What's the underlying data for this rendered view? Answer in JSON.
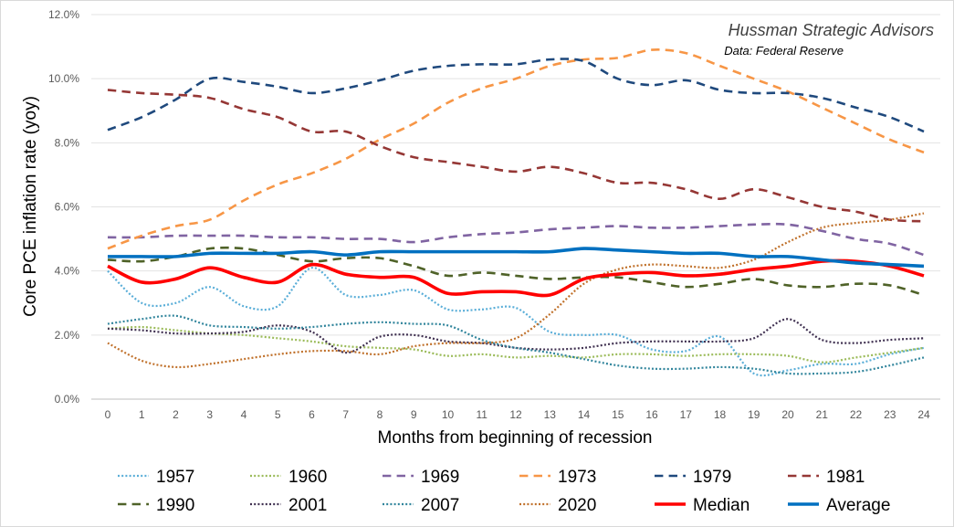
{
  "credit": {
    "line1": "Hussman Strategic Advisors",
    "line2": "Data: Federal Reserve"
  },
  "chart_data": {
    "type": "line",
    "xlabel": "Months from beginning of recession",
    "ylabel": "Core PCE inflation rate (yoy)",
    "x": [
      0,
      1,
      2,
      3,
      4,
      5,
      6,
      7,
      8,
      9,
      10,
      11,
      12,
      13,
      14,
      15,
      16,
      17,
      18,
      19,
      20,
      21,
      22,
      23,
      24
    ],
    "ylim": [
      0,
      12
    ],
    "y_ticks": [
      "0.0%",
      "2.0%",
      "4.0%",
      "6.0%",
      "8.0%",
      "10.0%",
      "12.0%"
    ],
    "y_tick_values": [
      0,
      2,
      4,
      6,
      8,
      10,
      12
    ],
    "grid": "horizontal",
    "legend_position": "bottom",
    "series": [
      {
        "name": "1957",
        "color": "#5aaed8",
        "style": "dotted",
        "width": 2.2,
        "values": [
          4.0,
          3.0,
          3.0,
          3.5,
          2.9,
          2.9,
          4.1,
          3.25,
          3.25,
          3.4,
          2.8,
          2.8,
          2.85,
          2.1,
          2.0,
          2.0,
          1.55,
          1.5,
          1.95,
          0.8,
          0.9,
          1.1,
          1.1,
          1.4,
          1.6
        ]
      },
      {
        "name": "1960",
        "color": "#9bbb59",
        "style": "dotted",
        "width": 2.2,
        "values": [
          2.2,
          2.25,
          2.15,
          2.05,
          2.0,
          1.9,
          1.8,
          1.65,
          1.6,
          1.55,
          1.35,
          1.4,
          1.3,
          1.35,
          1.3,
          1.4,
          1.4,
          1.35,
          1.4,
          1.4,
          1.35,
          1.15,
          1.3,
          1.45,
          1.6
        ]
      },
      {
        "name": "1969",
        "color": "#8064a2",
        "style": "dashed",
        "width": 2.6,
        "values": [
          5.05,
          5.05,
          5.1,
          5.1,
          5.1,
          5.05,
          5.05,
          5.0,
          5.0,
          4.9,
          5.05,
          5.15,
          5.2,
          5.3,
          5.35,
          5.4,
          5.35,
          5.35,
          5.4,
          5.45,
          5.45,
          5.25,
          5.0,
          4.85,
          4.5
        ]
      },
      {
        "name": "1973",
        "color": "#f79646",
        "style": "dashed",
        "width": 2.6,
        "values": [
          4.7,
          5.1,
          5.4,
          5.6,
          6.2,
          6.7,
          7.05,
          7.5,
          8.1,
          8.6,
          9.25,
          9.7,
          10.0,
          10.4,
          10.6,
          10.65,
          10.9,
          10.8,
          10.4,
          10.0,
          9.6,
          9.1,
          8.6,
          8.1,
          7.7
        ]
      },
      {
        "name": "1979",
        "color": "#1f497d",
        "style": "dashed",
        "width": 2.6,
        "values": [
          8.4,
          8.8,
          9.35,
          10.0,
          9.9,
          9.75,
          9.55,
          9.7,
          9.95,
          10.25,
          10.4,
          10.45,
          10.45,
          10.6,
          10.55,
          10.0,
          9.8,
          9.95,
          9.65,
          9.55,
          9.55,
          9.4,
          9.1,
          8.8,
          8.35
        ]
      },
      {
        "name": "1981",
        "color": "#953735",
        "style": "dashed",
        "width": 2.6,
        "values": [
          9.65,
          9.55,
          9.5,
          9.4,
          9.05,
          8.8,
          8.35,
          8.35,
          7.9,
          7.55,
          7.4,
          7.25,
          7.1,
          7.25,
          7.05,
          6.75,
          6.75,
          6.55,
          6.25,
          6.55,
          6.3,
          6.0,
          5.85,
          5.6,
          5.55
        ]
      },
      {
        "name": "1990",
        "color": "#4f6228",
        "style": "dashed",
        "width": 2.6,
        "values": [
          4.35,
          4.3,
          4.45,
          4.7,
          4.7,
          4.5,
          4.3,
          4.4,
          4.4,
          4.15,
          3.85,
          3.95,
          3.85,
          3.75,
          3.8,
          3.8,
          3.65,
          3.5,
          3.6,
          3.75,
          3.55,
          3.5,
          3.6,
          3.55,
          3.25
        ]
      },
      {
        "name": "2001",
        "color": "#403151",
        "style": "dotted",
        "width": 2.2,
        "values": [
          2.2,
          2.15,
          2.05,
          2.05,
          2.1,
          2.3,
          2.1,
          1.45,
          1.95,
          2.0,
          1.8,
          1.75,
          1.6,
          1.55,
          1.6,
          1.75,
          1.8,
          1.8,
          1.8,
          1.9,
          2.5,
          1.85,
          1.75,
          1.85,
          1.9
        ]
      },
      {
        "name": "2007",
        "color": "#31859c",
        "style": "dotted",
        "width": 2.2,
        "values": [
          2.35,
          2.5,
          2.6,
          2.3,
          2.25,
          2.2,
          2.25,
          2.35,
          2.4,
          2.35,
          2.3,
          1.85,
          1.6,
          1.45,
          1.25,
          1.05,
          0.95,
          0.95,
          1.0,
          0.95,
          0.8,
          0.8,
          0.85,
          1.05,
          1.3
        ]
      },
      {
        "name": "2020",
        "color": "#c0712b",
        "style": "dotted",
        "width": 2.2,
        "values": [
          1.75,
          1.2,
          1.0,
          1.1,
          1.25,
          1.4,
          1.5,
          1.5,
          1.4,
          1.65,
          1.75,
          1.75,
          1.9,
          2.65,
          3.6,
          4.05,
          4.2,
          4.15,
          4.1,
          4.35,
          4.9,
          5.35,
          5.5,
          5.6,
          5.8
        ]
      },
      {
        "name": "Median",
        "color": "#ff0000",
        "style": "solid",
        "width": 3.6,
        "values": [
          4.15,
          3.65,
          3.75,
          4.1,
          3.8,
          3.65,
          4.2,
          3.9,
          3.8,
          3.8,
          3.3,
          3.35,
          3.35,
          3.25,
          3.75,
          3.9,
          3.95,
          3.85,
          3.9,
          4.05,
          4.15,
          4.3,
          4.3,
          4.15,
          3.85
        ]
      },
      {
        "name": "Average",
        "color": "#0070c0",
        "style": "solid",
        "width": 3.6,
        "values": [
          4.45,
          4.45,
          4.45,
          4.55,
          4.55,
          4.55,
          4.6,
          4.5,
          4.6,
          4.6,
          4.6,
          4.6,
          4.6,
          4.6,
          4.7,
          4.65,
          4.6,
          4.55,
          4.55,
          4.45,
          4.45,
          4.35,
          4.25,
          4.2,
          4.15
        ]
      }
    ]
  }
}
